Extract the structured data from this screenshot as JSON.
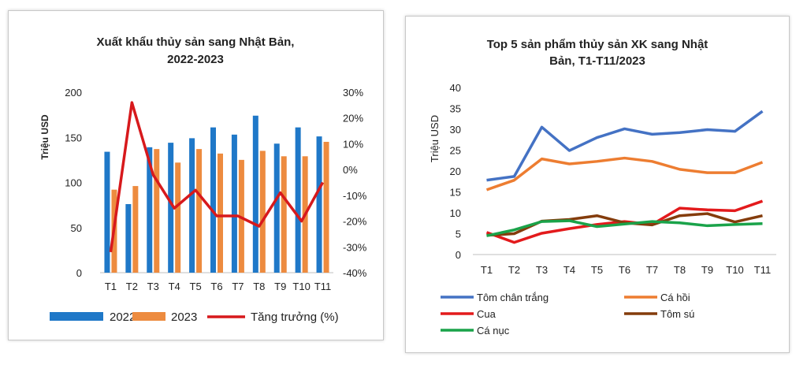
{
  "chart_data": [
    {
      "type": "bar",
      "title_lines": [
        "Xuất khẩu thủy sản sang Nhật Bản,",
        "2022-2023"
      ],
      "ylabel": "Triệu USD",
      "ylim": [
        0,
        200
      ],
      "yticks": [
        0,
        50,
        100,
        150,
        200
      ],
      "y2lim": [
        -40,
        30
      ],
      "y2ticks": [
        "-40%",
        "-30%",
        "-20%",
        "-10%",
        "0%",
        "10%",
        "20%",
        "30%"
      ],
      "y2values": [
        -40,
        -30,
        -20,
        -10,
        0,
        10,
        20,
        30
      ],
      "categories": [
        "T1",
        "T2",
        "T3",
        "T4",
        "T5",
        "T6",
        "T7",
        "T8",
        "T9",
        "T10",
        "T11"
      ],
      "series": [
        {
          "name": "2022",
          "type": "bar",
          "color": "#1f78c8",
          "values": [
            134,
            76,
            139,
            144,
            149,
            161,
            153,
            174,
            143,
            161,
            151
          ]
        },
        {
          "name": "2023",
          "type": "bar",
          "color": "#ed8b3f",
          "values": [
            92,
            96,
            137,
            122,
            137,
            132,
            125,
            135,
            129,
            129,
            145
          ]
        },
        {
          "name": "Tăng trưởng (%)",
          "type": "line",
          "axis": "secondary",
          "color": "#d7191c",
          "values": [
            -32,
            26,
            -2,
            -15,
            -8,
            -18,
            -18,
            -22,
            -9,
            -20,
            -5
          ]
        }
      ],
      "legend": "bottom"
    },
    {
      "type": "line",
      "title_lines": [
        "Top 5 sản phẩm thủy sản XK sang Nhật",
        "Bản, T1-T11/2023"
      ],
      "ylabel": "Triệu USD",
      "ylim": [
        0,
        40
      ],
      "yticks": [
        0,
        5,
        10,
        15,
        20,
        25,
        30,
        35,
        40
      ],
      "categories": [
        "T1",
        "T2",
        "T3",
        "T4",
        "T5",
        "T6",
        "T7",
        "T8",
        "T9",
        "T10",
        "T11"
      ],
      "series": [
        {
          "name": "Tôm chân trắng",
          "color": "#4472c4",
          "values": [
            17.8,
            18.7,
            30.5,
            24.9,
            28.0,
            30.1,
            28.8,
            29.2,
            29.9,
            29.5,
            34.3
          ]
        },
        {
          "name": "Cá hồi",
          "color": "#ed7d31",
          "values": [
            15.5,
            17.8,
            22.9,
            21.7,
            22.3,
            23.1,
            22.3,
            20.4,
            19.6,
            19.6,
            22.1
          ]
        },
        {
          "name": "Cua",
          "color": "#e31a1c",
          "values": [
            5.3,
            2.9,
            5.1,
            6.2,
            7.2,
            7.9,
            7.2,
            11.1,
            10.7,
            10.5,
            12.8
          ]
        },
        {
          "name": "Tôm sú",
          "color": "#843c0c",
          "values": [
            4.6,
            5.0,
            8.0,
            8.4,
            9.3,
            7.6,
            7.1,
            9.3,
            9.8,
            7.8,
            9.3
          ]
        },
        {
          "name": "Cá nục",
          "color": "#1aa34a",
          "values": [
            4.5,
            5.9,
            7.9,
            8.1,
            6.7,
            7.3,
            7.9,
            7.6,
            6.9,
            7.2,
            7.4
          ]
        }
      ],
      "legend": "bottom"
    }
  ]
}
